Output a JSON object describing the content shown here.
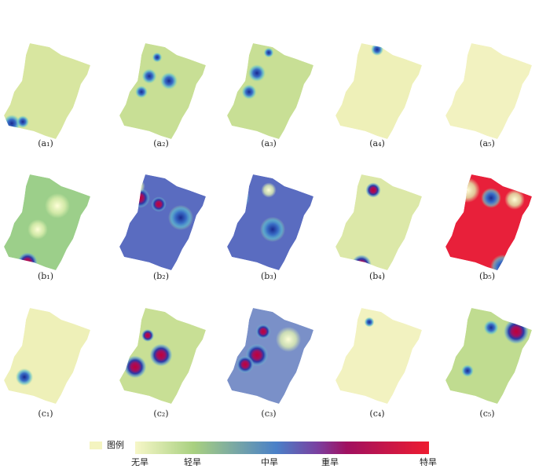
{
  "panels": [
    {
      "label": "(a₁)"
    },
    {
      "label": "(a₂)"
    },
    {
      "label": "(a₃)"
    },
    {
      "label": "(a₄)"
    },
    {
      "label": "(a₅)"
    },
    {
      "label": "(b₁)"
    },
    {
      "label": "(b₂)"
    },
    {
      "label": "(b₃)"
    },
    {
      "label": "(b₄)"
    },
    {
      "label": "(b₅)"
    },
    {
      "label": "(c₁)"
    },
    {
      "label": "(c₂)"
    },
    {
      "label": "(c₃)"
    },
    {
      "label": "(c₄)"
    },
    {
      "label": "(c₅)"
    }
  ],
  "legend": {
    "title": "图例",
    "levels": [
      "无旱",
      "轻旱",
      "中旱",
      "重旱",
      "特旱"
    ]
  }
}
